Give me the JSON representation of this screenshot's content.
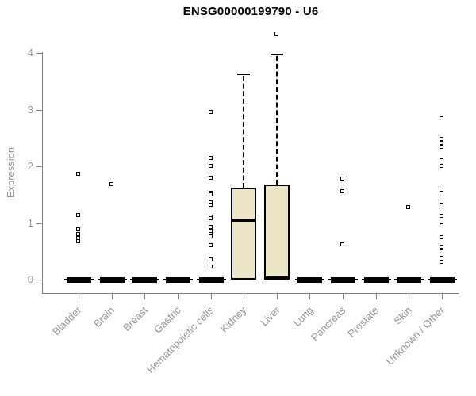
{
  "chart_data": {
    "type": "boxplot",
    "title": "ENSG00000199790 - U6",
    "xlabel": "",
    "ylabel": "Expression",
    "ylim": [
      0,
      4.4
    ],
    "yticks": [
      0,
      1,
      2,
      3,
      4
    ],
    "grid": false,
    "legend": null,
    "colors": {
      "box_fill": "#ede5c8",
      "box_border": "#000000",
      "axis": "#808080",
      "tick_text": "#949494",
      "title_text": "#000000",
      "background": "#ffffff"
    },
    "categories": [
      "Bladder",
      "Brain",
      "Breast",
      "Gastric",
      "Hematopoietic cells",
      "Kidney",
      "Liver",
      "Lung",
      "Pancreas",
      "Prostate",
      "Skin",
      "Unknown / Other"
    ],
    "series": [
      {
        "category": "Bladder",
        "q1": 0,
        "median": 0,
        "q3": 0,
        "whisker_low": 0,
        "whisker_high": 0,
        "outliers": [
          1.86,
          1.13,
          0.88,
          0.8,
          0.73,
          0.67
        ]
      },
      {
        "category": "Brain",
        "q1": 0,
        "median": 0,
        "q3": 0,
        "whisker_low": 0,
        "whisker_high": 0,
        "outliers": [
          1.68
        ]
      },
      {
        "category": "Breast",
        "q1": 0,
        "median": 0,
        "q3": 0,
        "whisker_low": 0,
        "whisker_high": 0,
        "outliers": []
      },
      {
        "category": "Gastric",
        "q1": 0,
        "median": 0,
        "q3": 0,
        "whisker_low": 0,
        "whisker_high": 0,
        "outliers": []
      },
      {
        "category": "Hematopoietic cells",
        "q1": 0,
        "median": 0,
        "q3": 0,
        "whisker_low": 0,
        "whisker_high": 0,
        "outliers": [
          2.95,
          2.14,
          2.0,
          1.79,
          1.53,
          1.49,
          1.36,
          1.31,
          1.11,
          1.07,
          0.92,
          0.86,
          0.8,
          0.75,
          0.6,
          0.35,
          0.22
        ]
      },
      {
        "category": "Kidney",
        "q1": 0,
        "median": 1.05,
        "q3": 1.62,
        "whisker_low": 0,
        "whisker_high": 3.62,
        "outliers": []
      },
      {
        "category": "Liver",
        "q1": 0,
        "median": 0.03,
        "q3": 1.68,
        "whisker_low": 0,
        "whisker_high": 3.97,
        "outliers": [
          4.33
        ]
      },
      {
        "category": "Lung",
        "q1": 0,
        "median": 0,
        "q3": 0,
        "whisker_low": 0,
        "whisker_high": 0,
        "outliers": []
      },
      {
        "category": "Pancreas",
        "q1": 0,
        "median": 0,
        "q3": 0,
        "whisker_low": 0,
        "whisker_high": 0,
        "outliers": [
          1.78,
          1.55,
          0.62
        ]
      },
      {
        "category": "Prostate",
        "q1": 0,
        "median": 0,
        "q3": 0,
        "whisker_low": 0,
        "whisker_high": 0,
        "outliers": []
      },
      {
        "category": "Skin",
        "q1": 0,
        "median": 0,
        "q3": 0,
        "whisker_low": 0,
        "whisker_high": 0,
        "outliers": [
          1.27
        ]
      },
      {
        "category": "Unknown / Other",
        "q1": 0,
        "median": 0,
        "q3": 0,
        "whisker_low": 0,
        "whisker_high": 0,
        "outliers": [
          2.84,
          2.47,
          2.41,
          2.34,
          2.1,
          2.0,
          1.58,
          1.37,
          1.12,
          0.95,
          0.74,
          0.58,
          0.49,
          0.43,
          0.36,
          0.31
        ]
      }
    ]
  }
}
